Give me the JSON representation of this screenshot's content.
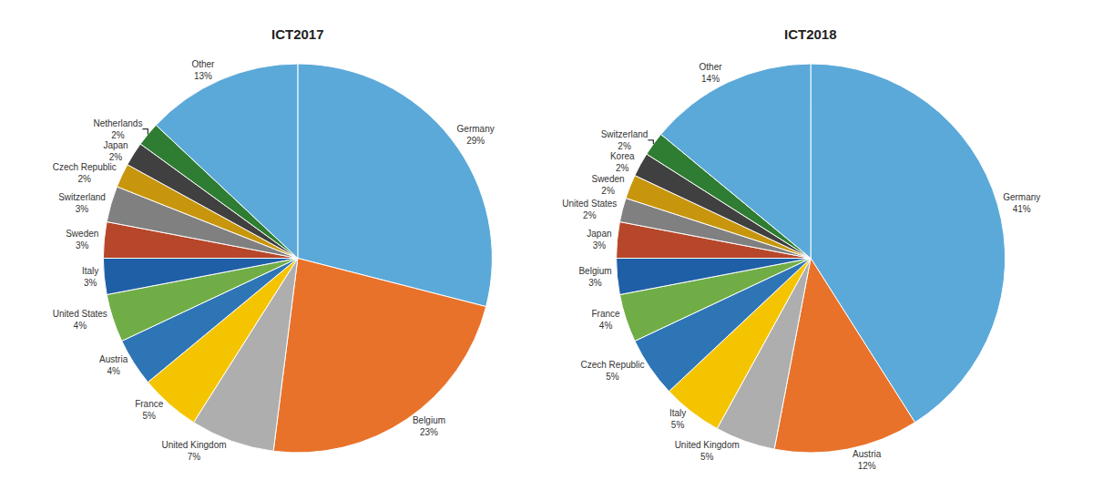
{
  "chart_data": [
    {
      "type": "pie",
      "title": "ICT2017",
      "categories": [
        "Germany",
        "Belgium",
        "United Kingdom",
        "France",
        "Austria",
        "United States",
        "Italy",
        "Sweden",
        "Switzerland",
        "Czech Republic",
        "Japan",
        "Netherlands",
        "Other"
      ],
      "values": [
        29,
        23,
        7,
        5,
        4,
        4,
        3,
        3,
        3,
        2,
        2,
        2,
        13
      ],
      "value_labels": [
        "29%",
        "23%",
        "7%",
        "5%",
        "4%",
        "4%",
        "3%",
        "3%",
        "3%",
        "2%",
        "2%",
        "2%",
        "13%"
      ],
      "colors": [
        "#5BA9D9",
        "#E8722A",
        "#AEAEAE",
        "#F5C400",
        "#2E75B6",
        "#70AD47",
        "#1F5FA6",
        "#B7472A",
        "#808080",
        "#C8960C",
        "#404040",
        "#2E7D32",
        "#5BA9D9"
      ],
      "data_labels": true
    },
    {
      "type": "pie",
      "title": "ICT2018",
      "categories": [
        "Germany",
        "Austria",
        "United Kingdom",
        "Italy",
        "Czech Republic",
        "France",
        "Belgium",
        "Japan",
        "United States",
        "Sweden",
        "Korea",
        "Switzerland",
        "Other"
      ],
      "values": [
        41,
        12,
        5,
        5,
        5,
        4,
        3,
        3,
        2,
        2,
        2,
        2,
        14
      ],
      "value_labels": [
        "41%",
        "12%",
        "5%",
        "5%",
        "5%",
        "4%",
        "3%",
        "3%",
        "2%",
        "2%",
        "2%",
        "2%",
        "14%"
      ],
      "colors": [
        "#5BA9D9",
        "#E8722A",
        "#AEAEAE",
        "#F5C400",
        "#2E75B6",
        "#70AD47",
        "#1F5FA6",
        "#B7472A",
        "#808080",
        "#C8960C",
        "#404040",
        "#2E7D32",
        "#5BA9D9"
      ],
      "data_labels": true
    }
  ]
}
